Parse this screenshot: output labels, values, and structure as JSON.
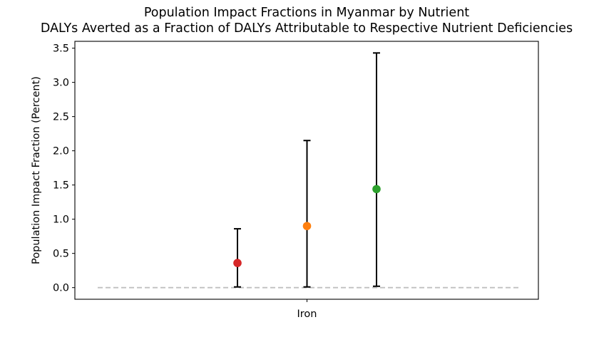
{
  "chart_data": {
    "type": "scatter",
    "title": "Population Impact Fractions in Myanmar by Nutrient",
    "subtitle": "DALYs Averted as a Fraction of DALYs Attributable to Respective Nutrient Deficiencies",
    "xlabel": "",
    "ylabel": "Population Impact Fraction (Percent)",
    "categories": [
      "Iron"
    ],
    "ylim": [
      -0.17,
      3.6
    ],
    "yticks": [
      "0.0",
      "0.5",
      "1.0",
      "1.5",
      "2.0",
      "2.5",
      "3.0",
      "3.5"
    ],
    "grid": false,
    "legend": "none",
    "reference_line": {
      "y": 0,
      "style": "dashed",
      "color": "#c0c0c0"
    },
    "series": [
      {
        "category": "Iron",
        "offset": -1,
        "value": 0.36,
        "lower": 0.01,
        "upper": 0.86,
        "color": "#d62728"
      },
      {
        "category": "Iron",
        "offset": 0,
        "value": 0.9,
        "lower": 0.01,
        "upper": 2.15,
        "color": "#ff7f0e"
      },
      {
        "category": "Iron",
        "offset": 1,
        "value": 1.44,
        "lower": 0.02,
        "upper": 3.43,
        "color": "#2ca02c"
      }
    ]
  }
}
